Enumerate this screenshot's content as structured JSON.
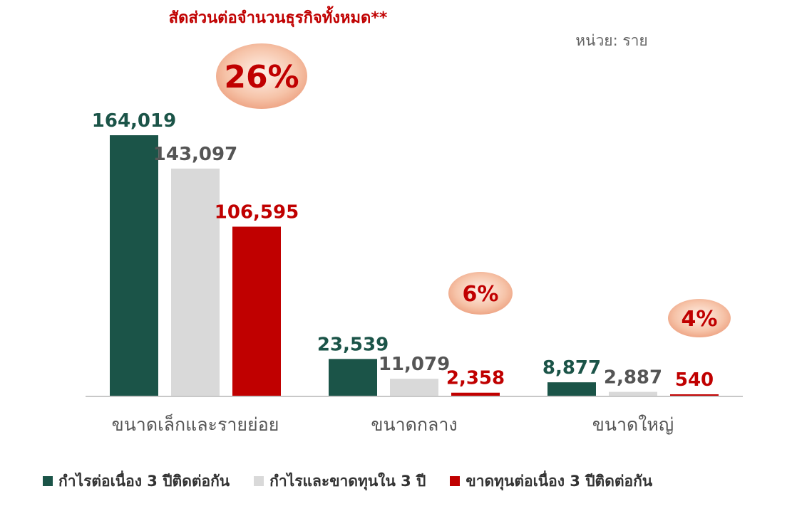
{
  "header": {
    "share_title": "สัดส่วนต่อจำนวนธุรกิจทั้งหมด**",
    "unit_label": "หน่วย: ราย"
  },
  "colors": {
    "green": "#1b5448",
    "gray": "#d9d9d9",
    "red": "#c00000",
    "share_text": "#c00000"
  },
  "chart_data": {
    "type": "bar",
    "title": "",
    "xlabel": "",
    "ylabel": "",
    "unit": "หน่วย: ราย",
    "categories": [
      "ขนาดเล็กและรายย่อย",
      "ขนาดกลาง",
      "ขนาดใหญ่"
    ],
    "series": [
      {
        "name": "กำไรต่อเนื่อง 3 ปีติดต่อกัน",
        "values": [
          164019,
          23539,
          8877
        ],
        "labels": [
          "164,019",
          "23,539",
          "8,877"
        ],
        "color": "#1b5448",
        "label_color": "#1b5448"
      },
      {
        "name": "กำไรและขาดทุนใน 3 ปี",
        "values": [
          143097,
          11079,
          2887
        ],
        "labels": [
          "143,097",
          "11,079",
          "2,887"
        ],
        "color": "#d9d9d9",
        "label_color": "#555555"
      },
      {
        "name": "ขาดทุนต่อเนื่อง 3 ปีติดต่อกัน",
        "values": [
          106595,
          2358,
          540
        ],
        "labels": [
          "106,595",
          "2,358",
          "540"
        ],
        "color": "#c00000",
        "label_color": "#c00000"
      }
    ],
    "shares": [
      "26%",
      "6%",
      "4%"
    ],
    "ylim": [
      0,
      164019
    ],
    "grid": false,
    "legend_position": "bottom"
  }
}
